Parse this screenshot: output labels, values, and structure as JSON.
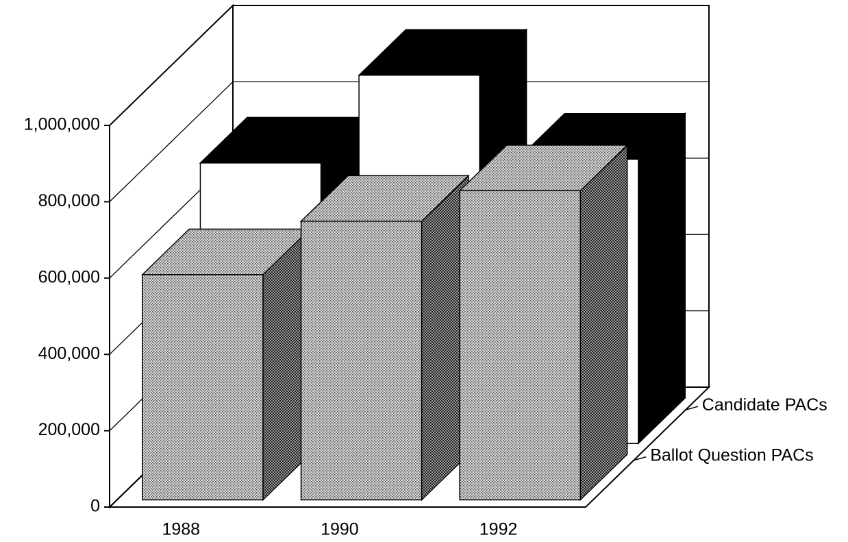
{
  "chart_data": {
    "type": "bar3d",
    "categories": [
      "1988",
      "1990",
      "1992"
    ],
    "series": [
      {
        "name": "Ballot Question PACs",
        "color": "#c4c4c4",
        "values": [
          590000,
          730000,
          810000
        ]
      },
      {
        "name": "Candidate PACs",
        "color": "#ffffff",
        "values": [
          735000,
          965000,
          745000
        ]
      }
    ],
    "ylim": [
      0,
      1000000
    ],
    "yticks": [
      0,
      {
        "value": 200000,
        "label": "200,000"
      },
      {
        "value": 400000,
        "label": "400,000"
      },
      {
        "value": 600000,
        "label": "600,000"
      },
      {
        "value": 800000,
        "label": "800,000"
      },
      {
        "value": 1000000,
        "label": "1,000,000"
      }
    ],
    "grid": true
  }
}
